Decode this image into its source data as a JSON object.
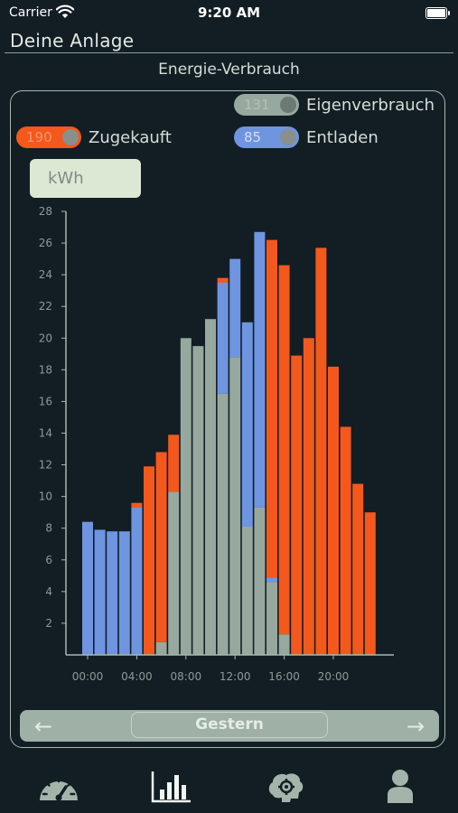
{
  "status": {
    "carrier": "Carrier",
    "time": "9:20 AM"
  },
  "header": {
    "title": "Deine Anlage"
  },
  "section": {
    "title": "Energie-Verbrauch"
  },
  "legend": {
    "eigenverbrauch": {
      "value": "131",
      "label": "Eigenverbrauch",
      "color": "#97a89e"
    },
    "zugekauft": {
      "value": "190",
      "label": "Zugekauft",
      "color": "#f4581d"
    },
    "entladen": {
      "value": "85",
      "label": "Entladen",
      "color": "#6f95e0"
    }
  },
  "unit_selector": {
    "value": "kWh"
  },
  "chart_data": {
    "type": "bar",
    "stacked": true,
    "x_ticks": [
      "00:00",
      "04:00",
      "08:00",
      "12:00",
      "16:00",
      "20:00"
    ],
    "y_ticks": [
      2,
      4,
      6,
      8,
      10,
      12,
      14,
      16,
      18,
      20,
      22,
      24,
      26,
      28
    ],
    "ylim": [
      0,
      28
    ],
    "hours": [
      0,
      1,
      2,
      3,
      4,
      5,
      6,
      7,
      8,
      9,
      10,
      11,
      12,
      13,
      14,
      15,
      16,
      17,
      18,
      19,
      20,
      21,
      22,
      23
    ],
    "series": [
      {
        "name": "Eigenverbrauch",
        "color": "#97a89e",
        "values": [
          0,
          0,
          0,
          0,
          0,
          0,
          0.8,
          10.3,
          20,
          19.5,
          21.2,
          16.5,
          18.8,
          8.1,
          9.3,
          4.6,
          1.3,
          0,
          0,
          0,
          0,
          0,
          0,
          0
        ]
      },
      {
        "name": "Entladen",
        "color": "#6f95e0",
        "values": [
          8.4,
          7.9,
          7.8,
          7.8,
          9.3,
          0,
          0,
          0,
          0,
          0,
          0,
          7,
          6.2,
          12.9,
          17.4,
          0.3,
          0,
          0,
          0,
          0,
          0,
          0,
          0,
          0
        ]
      },
      {
        "name": "Zugekauft",
        "color": "#f4581d",
        "values": [
          0,
          0,
          0,
          0,
          0.3,
          11.9,
          12,
          3.6,
          0,
          0,
          0,
          0.3,
          0,
          0,
          0,
          21.3,
          23.3,
          18.9,
          20,
          25.7,
          18.2,
          14.4,
          10.8,
          9
        ]
      }
    ]
  },
  "navigation": {
    "prev": "←",
    "label": "Gestern",
    "next": "→"
  }
}
